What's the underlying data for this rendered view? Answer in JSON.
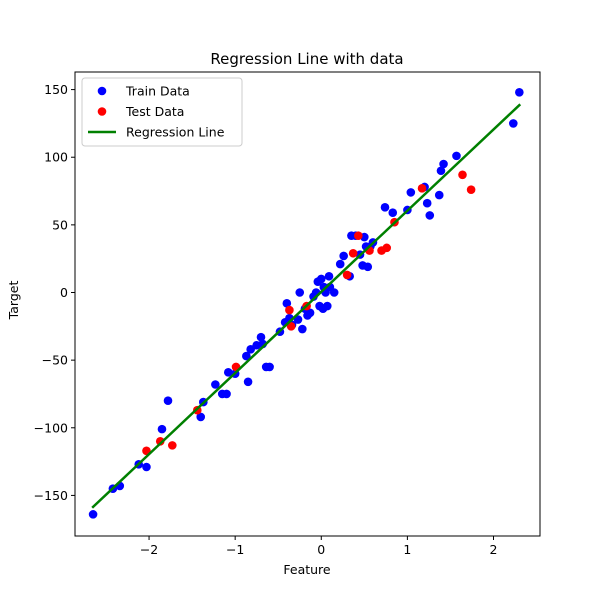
{
  "chart_data": {
    "type": "scatter",
    "title": "Regression Line with data",
    "xlabel": "Feature",
    "ylabel": "Target",
    "xlim": [
      -2.86,
      2.54
    ],
    "ylim": [
      -180,
      163
    ],
    "xticks": [
      -2,
      -1,
      0,
      1,
      2
    ],
    "xtick_labels": [
      "−2",
      "−1",
      "0",
      "1",
      "2"
    ],
    "yticks": [
      -150,
      -100,
      -50,
      0,
      50,
      100,
      150
    ],
    "ytick_labels": [
      "−150",
      "−100",
      "−50",
      "0",
      "50",
      "100",
      "150"
    ],
    "grid": false,
    "legend_position": "top-left",
    "series": [
      {
        "name": "Train Data",
        "kind": "scatter",
        "color": "#0000ff",
        "points": [
          [
            -2.65,
            -164
          ],
          [
            -2.42,
            -145
          ],
          [
            -2.34,
            -143
          ],
          [
            -2.12,
            -127
          ],
          [
            -2.03,
            -129
          ],
          [
            -1.85,
            -101
          ],
          [
            -1.78,
            -80
          ],
          [
            -1.4,
            -92
          ],
          [
            -1.37,
            -81
          ],
          [
            -1.23,
            -68
          ],
          [
            -1.15,
            -75
          ],
          [
            -1.1,
            -75
          ],
          [
            -1.08,
            -59
          ],
          [
            -1.0,
            -60
          ],
          [
            -0.87,
            -47
          ],
          [
            -0.85,
            -66
          ],
          [
            -0.82,
            -42
          ],
          [
            -0.75,
            -39
          ],
          [
            -0.7,
            -33
          ],
          [
            -0.68,
            -38
          ],
          [
            -0.64,
            -55
          ],
          [
            -0.6,
            -55
          ],
          [
            -0.48,
            -29
          ],
          [
            -0.42,
            -22
          ],
          [
            -0.4,
            -8
          ],
          [
            -0.37,
            -19
          ],
          [
            -0.34,
            -24
          ],
          [
            -0.27,
            -20
          ],
          [
            -0.25,
            0
          ],
          [
            -0.22,
            -27
          ],
          [
            -0.19,
            -12
          ],
          [
            -0.16,
            -17
          ],
          [
            -0.13,
            -15
          ],
          [
            -0.09,
            -3
          ],
          [
            -0.06,
            0
          ],
          [
            -0.04,
            8
          ],
          [
            -0.02,
            -10
          ],
          [
            0.0,
            10
          ],
          [
            0.02,
            -12
          ],
          [
            0.03,
            4
          ],
          [
            0.05,
            0
          ],
          [
            0.07,
            -10
          ],
          [
            0.09,
            12
          ],
          [
            0.1,
            4
          ],
          [
            0.15,
            0
          ],
          [
            0.22,
            21
          ],
          [
            0.26,
            27
          ],
          [
            0.33,
            12
          ],
          [
            0.35,
            42
          ],
          [
            0.4,
            42
          ],
          [
            0.45,
            28
          ],
          [
            0.48,
            20
          ],
          [
            0.5,
            41
          ],
          [
            0.52,
            34
          ],
          [
            0.54,
            19
          ],
          [
            0.57,
            34
          ],
          [
            0.6,
            37
          ],
          [
            0.74,
            63
          ],
          [
            0.83,
            59
          ],
          [
            1.0,
            61
          ],
          [
            1.04,
            74
          ],
          [
            1.2,
            78
          ],
          [
            1.23,
            66
          ],
          [
            1.26,
            57
          ],
          [
            1.37,
            72
          ],
          [
            1.39,
            90
          ],
          [
            1.42,
            95
          ],
          [
            1.57,
            101
          ],
          [
            2.23,
            125
          ],
          [
            2.3,
            148
          ]
        ]
      },
      {
        "name": "Test Data",
        "kind": "scatter",
        "color": "#ff0000",
        "points": [
          [
            -2.03,
            -117
          ],
          [
            -1.87,
            -110
          ],
          [
            -1.73,
            -113
          ],
          [
            -1.44,
            -87
          ],
          [
            -0.99,
            -55
          ],
          [
            -0.37,
            -13
          ],
          [
            -0.35,
            -25
          ],
          [
            -0.17,
            -10
          ],
          [
            0.3,
            13
          ],
          [
            0.37,
            29
          ],
          [
            0.43,
            42
          ],
          [
            0.56,
            31
          ],
          [
            0.7,
            31
          ],
          [
            0.76,
            33
          ],
          [
            0.85,
            52
          ],
          [
            1.17,
            77
          ],
          [
            1.64,
            87
          ],
          [
            1.74,
            76
          ]
        ]
      },
      {
        "name": "Regression Line",
        "kind": "line",
        "color": "#008000",
        "points": [
          [
            -2.65,
            -158.5
          ],
          [
            2.3,
            138.5
          ]
        ]
      }
    ]
  }
}
